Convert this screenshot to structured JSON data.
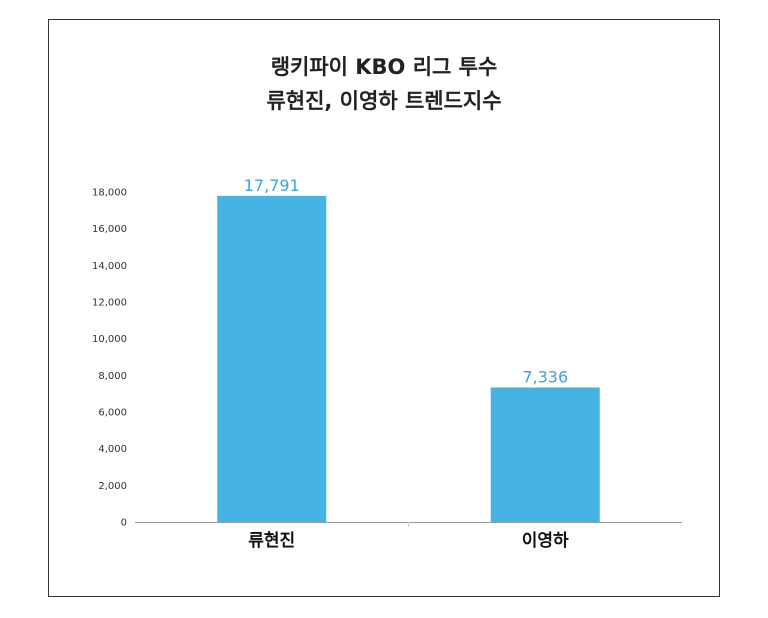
{
  "chart_data": {
    "type": "bar",
    "title_lines": [
      "랭키파이 KBO 리그 투수",
      "류현진, 이영하 트렌드지수"
    ],
    "categories": [
      "류현진",
      "이영하"
    ],
    "values": [
      17791,
      7336
    ],
    "data_labels": [
      "17,791",
      "7,336"
    ],
    "y_ticks": [
      "0",
      "2,000",
      "4,000",
      "6,000",
      "8,000",
      "10,000",
      "12,000",
      "14,000",
      "16,000",
      "18,000"
    ],
    "ylim": [
      0,
      18000
    ],
    "grid": false,
    "bar_color": "#45b3e3",
    "label_color": "#3aa6d8"
  }
}
